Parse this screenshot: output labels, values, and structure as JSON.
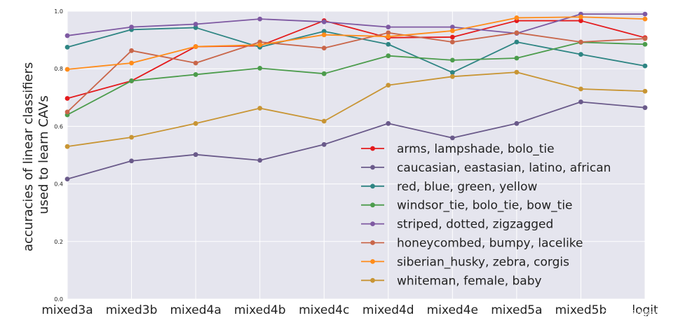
{
  "chart_data": {
    "type": "line",
    "title": "",
    "ylabel_lines": [
      "accuracies of linear classifiers",
      "used to learn CAVs"
    ],
    "xlabel": "",
    "categories": [
      "mixed3a",
      "mixed3b",
      "mixed4a",
      "mixed4b",
      "mixed4c",
      "mixed4d",
      "mixed4e",
      "mixed5a",
      "mixed5b",
      "logit"
    ],
    "ylim": [
      0.0,
      1.0
    ],
    "yticks": [
      "0.0",
      "0.2",
      "0.4",
      "0.6",
      "0.8",
      "1.0"
    ],
    "grid": true,
    "legend_position": "lower-right",
    "background": "#e5e5ee",
    "series": [
      {
        "name": "arms, lampshade, bolo_tie",
        "color": "#e41a1c",
        "values": [
          0.697,
          0.758,
          0.877,
          0.88,
          0.967,
          0.908,
          0.91,
          0.967,
          0.967,
          0.908
        ]
      },
      {
        "name": "caucasian, eastasian, latino, african",
        "color": "#6a5a8a",
        "values": [
          0.417,
          0.48,
          0.502,
          0.482,
          0.537,
          0.61,
          0.56,
          0.61,
          0.685,
          0.665
        ]
      },
      {
        "name": "red, blue, green, yellow",
        "color": "#2e8583",
        "values": [
          0.875,
          0.936,
          0.943,
          0.875,
          0.93,
          0.885,
          0.787,
          0.893,
          0.85,
          0.81
        ]
      },
      {
        "name": "windsor_tie, bolo_tie, bow_tie",
        "color": "#4c9c4c",
        "values": [
          0.64,
          0.758,
          0.78,
          0.802,
          0.783,
          0.845,
          0.83,
          0.837,
          0.892,
          0.885
        ]
      },
      {
        "name": "striped, dotted, zigzagged",
        "color": "#7e59a2",
        "values": [
          0.915,
          0.945,
          0.955,
          0.973,
          0.963,
          0.945,
          0.945,
          0.923,
          0.99,
          0.99
        ]
      },
      {
        "name": "honeycombed, bumpy, lacelike",
        "color": "#c9664a",
        "values": [
          0.65,
          0.863,
          0.82,
          0.893,
          0.872,
          0.925,
          0.893,
          0.925,
          0.893,
          0.905
        ]
      },
      {
        "name": "siberian_husky, zebra, corgis",
        "color": "#ff8c1a",
        "values": [
          0.798,
          0.82,
          0.877,
          0.883,
          0.918,
          0.912,
          0.932,
          0.977,
          0.98,
          0.973
        ]
      },
      {
        "name": "whiteman, female, baby",
        "color": "#c89534",
        "values": [
          0.53,
          0.562,
          0.61,
          0.663,
          0.618,
          0.743,
          0.773,
          0.788,
          0.73,
          0.722
        ]
      }
    ]
  },
  "watermark": "CSDN @daisyear"
}
